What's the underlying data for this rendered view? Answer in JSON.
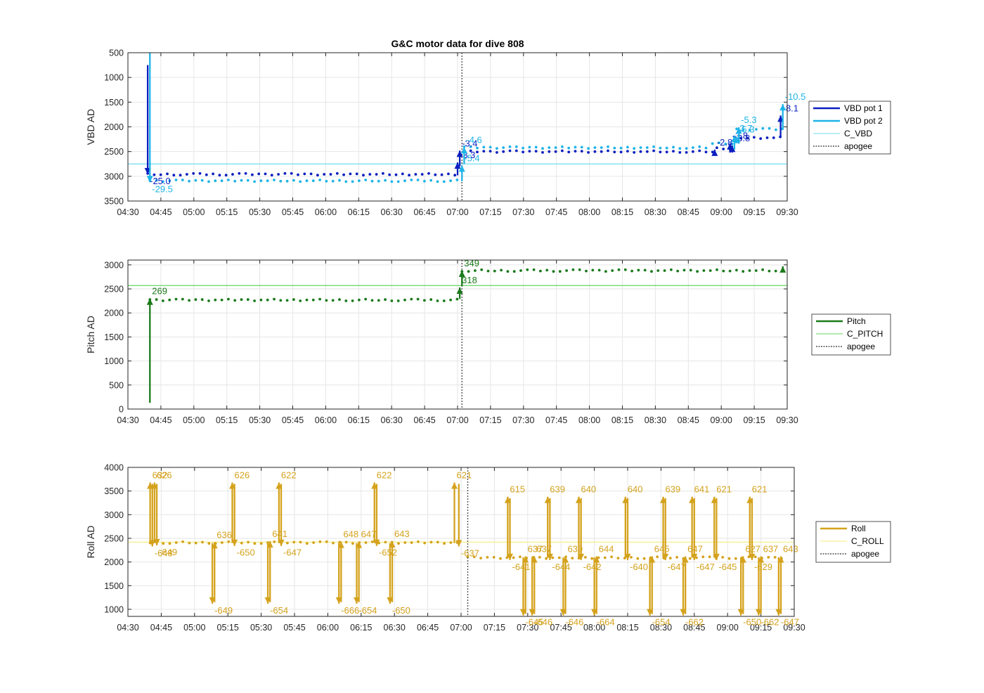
{
  "figure": {
    "title": "G&C motor data for dive 808"
  },
  "chart_data": [
    {
      "type": "line",
      "title": "G&C motor data for dive 808",
      "ylabel": "VBD AD",
      "ylim": [
        500,
        3500
      ],
      "y_reversed": true,
      "yticks": [
        "500",
        "1000",
        "1500",
        "2000",
        "2500",
        "3000",
        "3500"
      ],
      "xlim": [
        "04:30",
        "09:30"
      ],
      "xticks": [
        "04:30",
        "04:45",
        "05:00",
        "05:15",
        "05:30",
        "05:45",
        "06:00",
        "06:15",
        "06:30",
        "06:45",
        "07:00",
        "07:15",
        "07:30",
        "07:45",
        "08:00",
        "08:15",
        "08:30",
        "08:45",
        "09:00",
        "09:15",
        "09:30"
      ],
      "grid": true,
      "legend_position": "outside-right",
      "apogee": "07:02",
      "lines": [
        {
          "name": "C_VBD",
          "value": 2750,
          "color": "#6fdcf0"
        }
      ],
      "series": [
        {
          "name": "VBD pot 1",
          "color": "#0a1fbf",
          "segments": [
            {
              "start": "04:39",
              "end": "07:00",
              "value": 2960
            },
            {
              "start": "07:03",
              "end": "08:57",
              "value": 2500
            },
            {
              "start": "08:58",
              "end": "09:05",
              "value": 2440
            },
            {
              "start": "09:06",
              "end": "09:27",
              "value": 2220
            }
          ]
        },
        {
          "name": "VBD pot 2",
          "color": "#1eb4e8",
          "segments": [
            {
              "start": "04:40",
              "end": "07:00",
              "value": 3090
            },
            {
              "start": "07:03",
              "end": "08:55",
              "value": 2420
            },
            {
              "start": "08:56",
              "end": "09:06",
              "value": 2330
            },
            {
              "start": "09:07",
              "end": "09:28",
              "value": 2050
            }
          ]
        }
      ],
      "events": [
        {
          "x": "04:39",
          "y0": 750,
          "y1": 2960,
          "label": "-25.0",
          "color": "#0a1fbf"
        },
        {
          "x": "04:40",
          "y0": 500,
          "y1": 3120,
          "label": "-29.5",
          "color": "#1eb4e8"
        },
        {
          "x": "07:00",
          "y0": 2980,
          "y1": 2720,
          "label": "-3.3",
          "color": "#0a1fbf"
        },
        {
          "x": "07:01",
          "y0": 2800,
          "y1": 2480,
          "label": "-3.4",
          "color": "#0a1fbf"
        },
        {
          "x": "07:02",
          "y0": 3100,
          "y1": 2780,
          "label": "-5.4",
          "color": "#1eb4e8"
        },
        {
          "x": "07:03",
          "y0": 2750,
          "y1": 2410,
          "label": "-4.6",
          "color": "#1eb4e8"
        },
        {
          "x": "08:57",
          "y0": 2520,
          "y1": 2460,
          "label": "-2.8",
          "color": "#0a1fbf"
        },
        {
          "x": "09:04",
          "y0": 2520,
          "y1": 2330,
          "label": "-3.8",
          "color": "#0a1fbf"
        },
        {
          "x": "09:05",
          "y0": 2520,
          "y1": 2380,
          "label": "-3.8",
          "color": "#0a1fbf"
        },
        {
          "x": "09:06",
          "y0": 2460,
          "y1": 2180,
          "label": "-3.7",
          "color": "#1eb4e8"
        },
        {
          "x": "09:08",
          "y0": 2340,
          "y1": 2010,
          "label": "-5.3",
          "color": "#1eb4e8"
        },
        {
          "x": "09:07",
          "y0": 2330,
          "y1": 2200,
          "label": "-5.3",
          "color": "#1eb4e8"
        },
        {
          "x": "09:27",
          "y0": 2220,
          "y1": 1770,
          "label": "-8.1",
          "color": "#0a1fbf"
        },
        {
          "x": "09:28",
          "y0": 2040,
          "y1": 1540,
          "label": "-10.5",
          "color": "#1eb4e8"
        }
      ]
    },
    {
      "type": "line",
      "ylabel": "Pitch AD",
      "ylim": [
        0,
        3100
      ],
      "yticks": [
        "0",
        "500",
        "1000",
        "1500",
        "2000",
        "2500",
        "3000"
      ],
      "xlim": [
        "04:30",
        "09:30"
      ],
      "xticks": [
        "04:30",
        "04:45",
        "05:00",
        "05:15",
        "05:30",
        "05:45",
        "06:00",
        "06:15",
        "06:30",
        "06:45",
        "07:00",
        "07:15",
        "07:30",
        "07:45",
        "08:00",
        "08:15",
        "08:30",
        "08:45",
        "09:00",
        "09:15",
        "09:30"
      ],
      "grid": true,
      "legend_position": "outside-right",
      "apogee": "07:02",
      "lines": [
        {
          "name": "C_PITCH",
          "value": 2570,
          "color": "#62d862"
        }
      ],
      "series": [
        {
          "name": "Pitch",
          "color": "#1a7a1a",
          "segments": [
            {
              "start": "04:40",
              "end": "07:00",
              "value": 2270
            },
            {
              "start": "07:02",
              "end": "09:27",
              "value": 2880
            }
          ]
        }
      ],
      "events": [
        {
          "x": "04:40",
          "y0": 130,
          "y1": 2300,
          "label": "269",
          "color": "#1a7a1a"
        },
        {
          "x": "07:01",
          "y0": 2290,
          "y1": 2530,
          "label": "318",
          "color": "#1a7a1a"
        },
        {
          "x": "07:02",
          "y0": 2560,
          "y1": 2880,
          "label": "349",
          "color": "#1a7a1a"
        },
        {
          "x": "09:28",
          "y0": 2900,
          "y1": 2970,
          "label": "",
          "color": "#1a7a1a"
        }
      ]
    },
    {
      "type": "line",
      "ylabel": "Roll AD",
      "ylim": [
        850,
        4000
      ],
      "yticks": [
        "1000",
        "1500",
        "2000",
        "2500",
        "3000",
        "3500",
        "4000"
      ],
      "xlim": [
        "04:30",
        "09:30"
      ],
      "xticks": [
        "04:30",
        "04:45",
        "05:00",
        "05:15",
        "05:30",
        "05:45",
        "06:00",
        "06:15",
        "06:30",
        "06:45",
        "07:00",
        "07:15",
        "07:30",
        "07:45",
        "08:00",
        "08:15",
        "08:30",
        "08:45",
        "09:00",
        "09:15",
        "09:30"
      ],
      "grid": true,
      "legend_position": "outside-right",
      "apogee": "07:03",
      "lines": [
        {
          "name": "C_ROLL",
          "value": 2420,
          "color": "#f5ee7a"
        }
      ],
      "series": [
        {
          "name": "Roll",
          "color": "#d4a21c",
          "segments": [
            {
              "start": "04:40",
              "end": "07:00",
              "value": 2410
            },
            {
              "start": "07:03",
              "end": "09:27",
              "value": 2090
            }
          ]
        }
      ],
      "events": [
        {
          "x": "04:40",
          "y0": 2400,
          "y1": 3680,
          "label": "632",
          "color": "#d4a21c"
        },
        {
          "x": "04:41",
          "y0": 3650,
          "y1": 2330,
          "label": "-648",
          "color": "#d4a21c"
        },
        {
          "x": "04:42",
          "y0": 2400,
          "y1": 3680,
          "label": "626",
          "color": "#d4a21c"
        },
        {
          "x": "04:43",
          "y0": 3650,
          "y1": 2350,
          "label": "-649",
          "color": "#d4a21c"
        },
        {
          "x": "05:08",
          "y0": 2400,
          "y1": 1120,
          "label": "-649",
          "color": "#d4a21c"
        },
        {
          "x": "05:09",
          "y0": 1150,
          "y1": 2420,
          "label": "636",
          "color": "#d4a21c"
        },
        {
          "x": "05:17",
          "y0": 2400,
          "y1": 3680,
          "label": "626",
          "color": "#d4a21c"
        },
        {
          "x": "05:18",
          "y0": 3650,
          "y1": 2340,
          "label": "-650",
          "color": "#d4a21c"
        },
        {
          "x": "05:33",
          "y0": 2400,
          "y1": 1120,
          "label": "-654",
          "color": "#d4a21c"
        },
        {
          "x": "05:34",
          "y0": 1150,
          "y1": 2440,
          "label": "641",
          "color": "#d4a21c"
        },
        {
          "x": "05:38",
          "y0": 2400,
          "y1": 3680,
          "label": "622",
          "color": "#d4a21c"
        },
        {
          "x": "05:39",
          "y0": 3650,
          "y1": 2340,
          "label": "-647",
          "color": "#d4a21c"
        },
        {
          "x": "06:05",
          "y0": 2400,
          "y1": 1120,
          "label": "-666",
          "color": "#d4a21c"
        },
        {
          "x": "06:06",
          "y0": 1150,
          "y1": 2430,
          "label": "648",
          "color": "#d4a21c"
        },
        {
          "x": "06:13",
          "y0": 2400,
          "y1": 1120,
          "label": "-654",
          "color": "#d4a21c"
        },
        {
          "x": "06:14",
          "y0": 1150,
          "y1": 2430,
          "label": "647",
          "color": "#d4a21c"
        },
        {
          "x": "06:21",
          "y0": 2400,
          "y1": 3680,
          "label": "622",
          "color": "#d4a21c"
        },
        {
          "x": "06:22",
          "y0": 3650,
          "y1": 2340,
          "label": "-652",
          "color": "#d4a21c"
        },
        {
          "x": "06:28",
          "y0": 2400,
          "y1": 1120,
          "label": "-650",
          "color": "#d4a21c"
        },
        {
          "x": "06:29",
          "y0": 1150,
          "y1": 2440,
          "label": "643",
          "color": "#d4a21c"
        },
        {
          "x": "06:57",
          "y0": 2400,
          "y1": 3680,
          "label": "621",
          "color": "#d4a21c"
        },
        {
          "x": "06:59",
          "y0": 3650,
          "y1": 2330,
          "label": "-637",
          "color": "#d4a21c"
        },
        {
          "x": "07:21",
          "y0": 2090,
          "y1": 3380,
          "label": "615",
          "color": "#d4a21c"
        },
        {
          "x": "07:22",
          "y0": 3350,
          "y1": 2040,
          "label": "-641",
          "color": "#d4a21c"
        },
        {
          "x": "07:28",
          "y0": 2100,
          "y1": 870,
          "label": "-645",
          "color": "#d4a21c"
        },
        {
          "x": "07:29",
          "y0": 900,
          "y1": 2120,
          "label": "637",
          "color": "#d4a21c"
        },
        {
          "x": "07:32",
          "y0": 2100,
          "y1": 870,
          "label": "-646",
          "color": "#d4a21c"
        },
        {
          "x": "07:33",
          "y0": 900,
          "y1": 2120,
          "label": "637",
          "color": "#d4a21c"
        },
        {
          "x": "07:39",
          "y0": 2090,
          "y1": 3380,
          "label": "639",
          "color": "#d4a21c"
        },
        {
          "x": "07:40",
          "y0": 3350,
          "y1": 2040,
          "label": "-644",
          "color": "#d4a21c"
        },
        {
          "x": "07:46",
          "y0": 2100,
          "y1": 870,
          "label": "-646",
          "color": "#d4a21c"
        },
        {
          "x": "07:47",
          "y0": 900,
          "y1": 2120,
          "label": "639",
          "color": "#d4a21c"
        },
        {
          "x": "07:53",
          "y0": 2090,
          "y1": 3380,
          "label": "640",
          "color": "#d4a21c"
        },
        {
          "x": "07:54",
          "y0": 3350,
          "y1": 2040,
          "label": "-642",
          "color": "#d4a21c"
        },
        {
          "x": "08:00",
          "y0": 2100,
          "y1": 870,
          "label": "-664",
          "color": "#d4a21c"
        },
        {
          "x": "08:01",
          "y0": 900,
          "y1": 2120,
          "label": "644",
          "color": "#d4a21c"
        },
        {
          "x": "08:14",
          "y0": 2090,
          "y1": 3380,
          "label": "640",
          "color": "#d4a21c"
        },
        {
          "x": "08:15",
          "y0": 3350,
          "y1": 2040,
          "label": "-640",
          "color": "#d4a21c"
        },
        {
          "x": "08:25",
          "y0": 2100,
          "y1": 870,
          "label": "-654",
          "color": "#d4a21c"
        },
        {
          "x": "08:26",
          "y0": 900,
          "y1": 2120,
          "label": "645",
          "color": "#d4a21c"
        },
        {
          "x": "08:31",
          "y0": 2090,
          "y1": 3380,
          "label": "639",
          "color": "#d4a21c"
        },
        {
          "x": "08:32",
          "y0": 3350,
          "y1": 2040,
          "label": "-647",
          "color": "#d4a21c"
        },
        {
          "x": "08:40",
          "y0": 2100,
          "y1": 870,
          "label": "-662",
          "color": "#d4a21c"
        },
        {
          "x": "08:41",
          "y0": 900,
          "y1": 2120,
          "label": "647",
          "color": "#d4a21c"
        },
        {
          "x": "08:44",
          "y0": 2090,
          "y1": 3380,
          "label": "641",
          "color": "#d4a21c"
        },
        {
          "x": "08:45",
          "y0": 3350,
          "y1": 2040,
          "label": "-647",
          "color": "#d4a21c"
        },
        {
          "x": "08:54",
          "y0": 2090,
          "y1": 3380,
          "label": "621",
          "color": "#d4a21c"
        },
        {
          "x": "08:55",
          "y0": 3350,
          "y1": 2040,
          "label": "-645",
          "color": "#d4a21c"
        },
        {
          "x": "09:06",
          "y0": 2100,
          "y1": 870,
          "label": "-650",
          "color": "#d4a21c"
        },
        {
          "x": "09:07",
          "y0": 900,
          "y1": 2120,
          "label": "627",
          "color": "#d4a21c"
        },
        {
          "x": "09:10",
          "y0": 2090,
          "y1": 3380,
          "label": "621",
          "color": "#d4a21c"
        },
        {
          "x": "09:11",
          "y0": 3350,
          "y1": 2040,
          "label": "-629",
          "color": "#d4a21c"
        },
        {
          "x": "09:14",
          "y0": 2100,
          "y1": 870,
          "label": "-662",
          "color": "#d4a21c"
        },
        {
          "x": "09:15",
          "y0": 900,
          "y1": 2120,
          "label": "637",
          "color": "#d4a21c"
        },
        {
          "x": "09:23",
          "y0": 2100,
          "y1": 870,
          "label": "-647",
          "color": "#d4a21c"
        },
        {
          "x": "09:24",
          "y0": 900,
          "y1": 2120,
          "label": "643",
          "color": "#d4a21c"
        }
      ]
    }
  ],
  "legends": [
    {
      "items": [
        {
          "label": "VBD pot 1",
          "style": "thick",
          "color": "#0a1fbf"
        },
        {
          "label": "VBD pot 2",
          "style": "thick",
          "color": "#1eb4e8"
        },
        {
          "label": "C_VBD",
          "style": "thin",
          "color": "#6fdcf0"
        },
        {
          "label": "apogee",
          "style": "dotted",
          "color": "#555555"
        }
      ]
    },
    {
      "items": [
        {
          "label": "Pitch",
          "style": "thick",
          "color": "#1a7a1a"
        },
        {
          "label": "C_PITCH",
          "style": "thin",
          "color": "#62d862"
        },
        {
          "label": "apogee",
          "style": "dotted",
          "color": "#555555"
        }
      ]
    },
    {
      "items": [
        {
          "label": "Roll",
          "style": "thick",
          "color": "#d4a21c"
        },
        {
          "label": "C_ROLL",
          "style": "thin",
          "color": "#f5ee7a"
        },
        {
          "label": "apogee",
          "style": "dotted",
          "color": "#555555"
        }
      ]
    }
  ]
}
